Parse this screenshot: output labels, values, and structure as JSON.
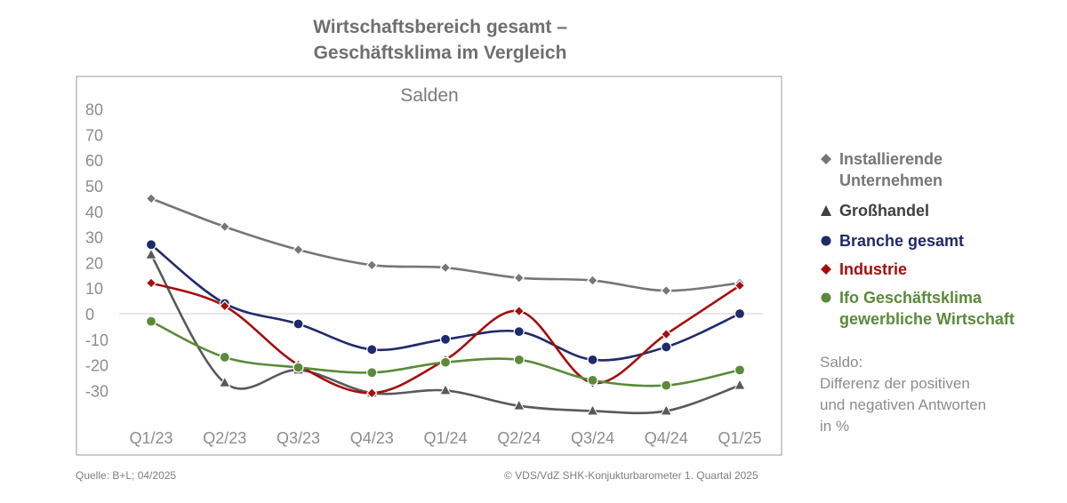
{
  "title_line1": "Wirtschaftsbereich gesamt –",
  "title_line2": "Geschäftsklima im Vergleich",
  "chart_data": {
    "type": "line",
    "title": "Wirtschaftsbereich gesamt – Geschäftsklima im Vergleich",
    "plot_label": "Salden",
    "categories": [
      "Q1/23",
      "Q2/23",
      "Q3/23",
      "Q4/23",
      "Q1/24",
      "Q2/24",
      "Q3/24",
      "Q4/24",
      "Q1/25"
    ],
    "yticks": [
      80,
      70,
      60,
      50,
      40,
      30,
      20,
      10,
      0,
      -10,
      -20,
      -30
    ],
    "ylim": [
      -40,
      80
    ],
    "grid": false,
    "zero_line": true,
    "legend_position": "right",
    "series": [
      {
        "name": "Installierende Unternehmen",
        "marker": "diamond",
        "color": "#767676",
        "values": [
          45,
          34,
          25,
          19,
          18,
          14,
          13,
          9,
          12
        ]
      },
      {
        "name": "Großhandel",
        "marker": "triangle",
        "color": "#595959",
        "values": [
          23,
          -27,
          -22,
          -31,
          -30,
          -36,
          -38,
          -38,
          -28
        ]
      },
      {
        "name": "Branche gesamt",
        "marker": "circle",
        "color": "#1f2a6b",
        "values": [
          27,
          4,
          -4,
          -14,
          -10,
          -7,
          -18,
          -13,
          0
        ]
      },
      {
        "name": "Industrie",
        "marker": "diamond",
        "color": "#a50e0e",
        "values": [
          12,
          3,
          -20,
          -31,
          -18,
          1,
          -27,
          -8,
          11
        ]
      },
      {
        "name": "Ifo Geschäftsklima gewerbliche Wirtschaft",
        "marker": "circle",
        "color": "#5a8a3a",
        "values": [
          -3,
          -17,
          -21,
          -23,
          -19,
          -18,
          -26,
          -28,
          -22
        ]
      }
    ]
  },
  "legend": [
    {
      "lines": [
        "Installierende",
        "Unternehmen"
      ],
      "color": "#767676",
      "marker": "diamond"
    },
    {
      "lines": [
        "Großhandel"
      ],
      "color": "#3f3f3f",
      "marker": "triangle"
    },
    {
      "lines": [
        "Branche gesamt"
      ],
      "color": "#1f2a6b",
      "marker": "circle"
    },
    {
      "lines": [
        "Industrie"
      ],
      "color": "#a50e0e",
      "marker": "diamond"
    },
    {
      "lines": [
        "Ifo Geschäftsklima",
        "gewerbliche Wirtschaft"
      ],
      "color": "#5a8a3a",
      "marker": "circle"
    }
  ],
  "note": {
    "line1": "Saldo:",
    "line2": "Differenz der positiven",
    "line3": "und negativen Antworten",
    "line4": "in %"
  },
  "footer": {
    "source": "Quelle: B+L; 04/2025",
    "copyright": "© VDS/VdZ SHK-Konjukturbarometer 1. Quartal 2025"
  }
}
